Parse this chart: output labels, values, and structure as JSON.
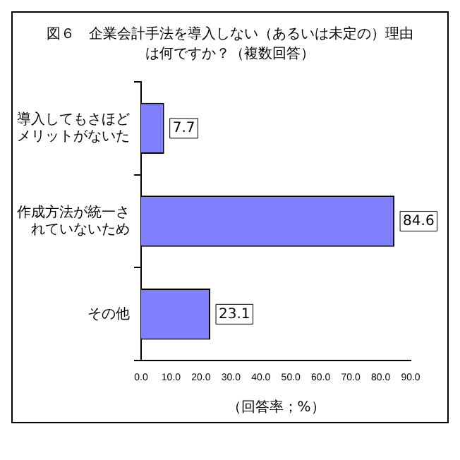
{
  "chart_data": {
    "type": "bar",
    "orientation": "horizontal",
    "title": "図６　企業会計手法を導入しない（あるいは未定の）理由は何ですか？（複数回答）",
    "categories": [
      "導入してもさほどメリットがないた",
      "作成方法が統一されていないため",
      "その他"
    ],
    "values": [
      7.7,
      84.6,
      23.1
    ],
    "color": "#8080ff",
    "xlabel": "（回答率；%）",
    "xlim": [
      0,
      90
    ],
    "xticks": [
      {
        "value": 0,
        "label": "0.0"
      },
      {
        "value": 10,
        "label": "10.0"
      },
      {
        "value": 20,
        "label": "20.0"
      },
      {
        "value": 30,
        "label": "30.0"
      },
      {
        "value": 40,
        "label": "40.0"
      },
      {
        "value": 50,
        "label": "50.0"
      },
      {
        "value": 60,
        "label": "60.0"
      },
      {
        "value": 70,
        "label": "70.0"
      },
      {
        "value": 80,
        "label": "80.0"
      },
      {
        "value": 90,
        "label": "90.0"
      }
    ],
    "data_labels": true,
    "grid": false,
    "legend": false
  }
}
